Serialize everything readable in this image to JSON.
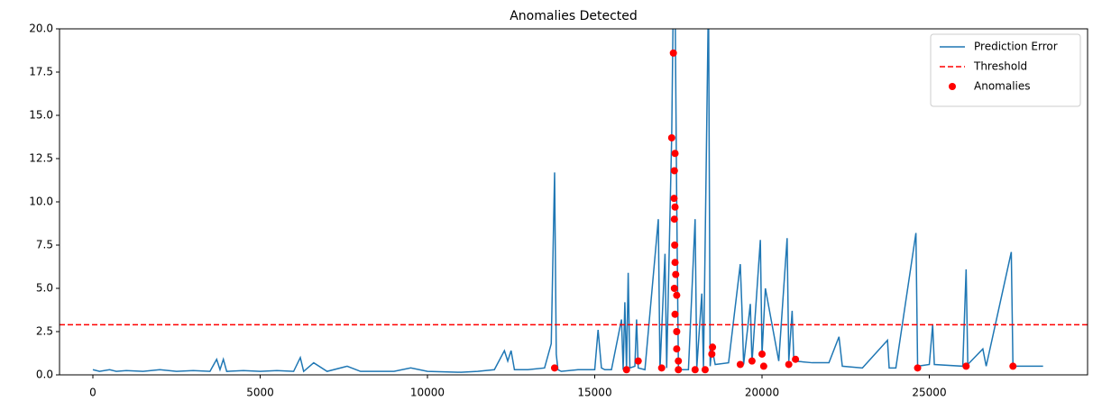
{
  "chart_data": {
    "type": "line",
    "title": "Anomalies Detected",
    "xlim": [
      -997,
      29730
    ],
    "xticks": [
      0,
      5000,
      10000,
      15000,
      20000,
      25000
    ],
    "ylim": [
      0,
      20
    ],
    "yticks": [
      {
        "value": 0,
        "label": "0.0"
      },
      {
        "value": 2.5,
        "label": "2.5"
      },
      {
        "value": 5,
        "label": "5.0"
      },
      {
        "value": 7.5,
        "label": "7.5"
      },
      {
        "value": 10,
        "label": "10.0"
      },
      {
        "value": 12.5,
        "label": "12.5"
      },
      {
        "value": 15,
        "label": "15.0"
      },
      {
        "value": 17.5,
        "label": "17.5"
      },
      {
        "value": 20,
        "label": "20.0"
      }
    ],
    "legend": "upper right",
    "series": [
      {
        "name": "Prediction Error",
        "type": "line",
        "color": "#1f77b4",
        "x": [
          0,
          200,
          500,
          700,
          1000,
          1500,
          2000,
          2500,
          3000,
          3500,
          3700,
          3800,
          3900,
          4000,
          4500,
          5000,
          5500,
          6000,
          6200,
          6300,
          6600,
          7000,
          7600,
          8000,
          9000,
          9500,
          10000,
          11000,
          11500,
          12000,
          12300,
          12400,
          12500,
          12600,
          13000,
          13500,
          13700,
          13800,
          13850,
          13900,
          14000,
          14500,
          15000,
          15100,
          15200,
          15300,
          15500,
          15800,
          15850,
          15900,
          15950,
          16000,
          16050,
          16200,
          16250,
          16300,
          16500,
          16900,
          16950,
          17100,
          17150,
          17300,
          17350,
          17400,
          17450,
          17500,
          17600,
          17800,
          18000,
          18050,
          18200,
          18250,
          18400,
          18450,
          18500,
          18600,
          19000,
          19350,
          19400,
          19450,
          19650,
          19700,
          19950,
          20000,
          20100,
          20500,
          20750,
          20800,
          20900,
          20950,
          21500,
          22000,
          22300,
          22400,
          23000,
          23750,
          23800,
          24000,
          24600,
          24650,
          25000,
          25100,
          25150,
          26000,
          26100,
          26150,
          26600,
          26700,
          27450,
          27500,
          28000,
          28400
        ],
        "values": [
          0.3,
          0.2,
          0.3,
          0.2,
          0.25,
          0.2,
          0.3,
          0.2,
          0.25,
          0.2,
          0.9,
          0.3,
          0.9,
          0.2,
          0.25,
          0.2,
          0.25,
          0.2,
          1.0,
          0.2,
          0.7,
          0.2,
          0.5,
          0.2,
          0.2,
          0.4,
          0.2,
          0.15,
          0.2,
          0.3,
          1.4,
          0.8,
          1.4,
          0.3,
          0.3,
          0.4,
          1.8,
          11.7,
          1.2,
          0.3,
          0.2,
          0.3,
          0.3,
          2.6,
          0.4,
          0.3,
          0.3,
          3.2,
          0.3,
          4.2,
          0.3,
          5.9,
          0.4,
          0.5,
          3.2,
          0.4,
          0.3,
          9.0,
          0.3,
          7.0,
          0.4,
          13.8,
          22,
          22,
          10,
          0.5,
          0.3,
          0.3,
          9.0,
          0.4,
          4.7,
          0.4,
          22,
          0.5,
          1.6,
          0.6,
          0.7,
          6.4,
          3.8,
          0.6,
          4.1,
          0.7,
          7.8,
          1.2,
          5.0,
          0.8,
          7.9,
          0.8,
          3.7,
          0.8,
          0.7,
          0.7,
          2.2,
          0.5,
          0.4,
          2.0,
          0.4,
          0.4,
          8.2,
          0.5,
          0.6,
          2.9,
          0.6,
          0.5,
          6.1,
          0.6,
          1.5,
          0.5,
          7.1,
          0.5,
          0.5,
          0.5
        ]
      },
      {
        "name": "Threshold",
        "type": "hline",
        "color": "red",
        "linestyle": "dashed",
        "values": [
          2.9
        ]
      },
      {
        "name": "Anomalies",
        "type": "scatter",
        "color": "red",
        "x": [
          13800,
          15950,
          16300,
          17000,
          17300,
          17350,
          17400,
          17380,
          17370,
          17400,
          17380,
          17390,
          17400,
          17420,
          17380,
          17450,
          17400,
          17450,
          17450,
          17500,
          17500,
          18000,
          18300,
          18500,
          18520,
          19350,
          19700,
          20000,
          20050,
          20800,
          21000,
          24650,
          26100,
          27500
        ],
        "values": [
          0.4,
          0.3,
          0.8,
          0.4,
          13.7,
          18.6,
          12.8,
          11.8,
          10.2,
          9.7,
          9.0,
          7.5,
          6.5,
          5.8,
          5.0,
          4.6,
          3.5,
          2.5,
          1.5,
          0.8,
          0.3,
          0.3,
          0.3,
          1.2,
          1.6,
          0.6,
          0.8,
          1.2,
          0.5,
          0.6,
          0.9,
          0.4,
          0.5,
          0.5
        ]
      }
    ]
  }
}
